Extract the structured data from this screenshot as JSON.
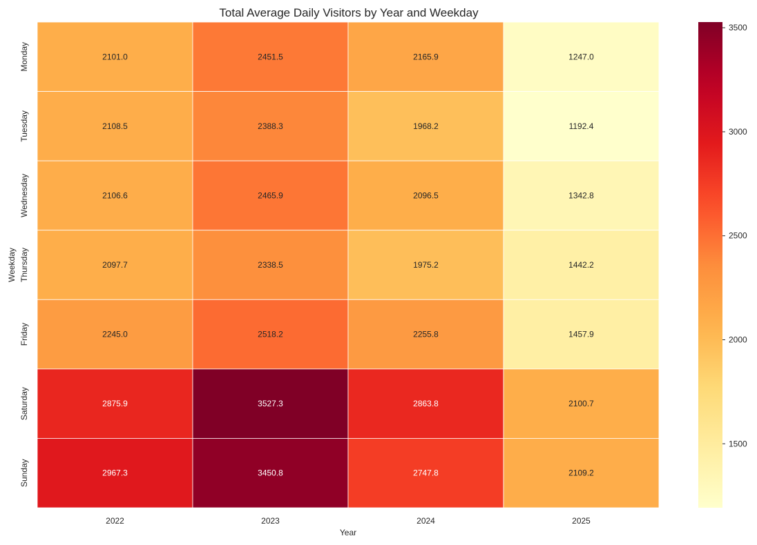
{
  "chart_data": {
    "type": "heatmap",
    "title": "Total Average Daily Visitors by Year and Weekday",
    "xlabel": "Year",
    "ylabel": "Weekday",
    "x": [
      "2022",
      "2023",
      "2024",
      "2025"
    ],
    "y": [
      "Monday",
      "Tuesday",
      "Wednesday",
      "Thursday",
      "Friday",
      "Saturday",
      "Sunday"
    ],
    "values": [
      [
        2101.0,
        2451.5,
        2165.9,
        1247.0
      ],
      [
        2108.5,
        2388.3,
        1968.2,
        1192.4
      ],
      [
        2106.6,
        2465.9,
        2096.5,
        1342.8
      ],
      [
        2097.7,
        2338.5,
        1975.2,
        1442.2
      ],
      [
        2245.0,
        2518.2,
        2255.8,
        1457.9
      ],
      [
        2875.9,
        3527.3,
        2863.8,
        2100.7
      ],
      [
        2967.3,
        3450.8,
        2747.8,
        2109.2
      ]
    ],
    "colormap": "YlOrRd",
    "colorbar": {
      "range": [
        1192.4,
        3527.3
      ],
      "ticks": [
        "1500",
        "2000",
        "2500",
        "3000",
        "3500"
      ]
    }
  }
}
